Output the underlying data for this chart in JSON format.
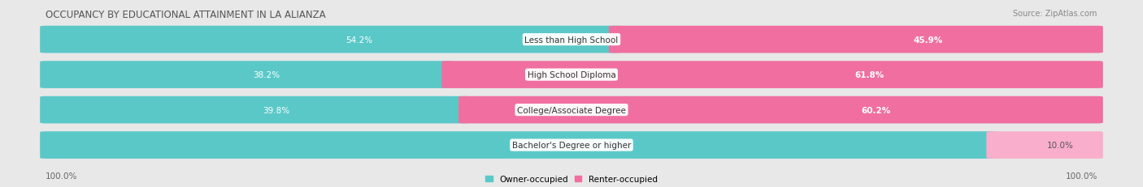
{
  "title": "OCCUPANCY BY EDUCATIONAL ATTAINMENT IN LA ALIANZA",
  "source": "Source: ZipAtlas.com",
  "categories": [
    "Less than High School",
    "High School Diploma",
    "College/Associate Degree",
    "Bachelor's Degree or higher"
  ],
  "owner_values": [
    54.2,
    38.2,
    39.8,
    90.0
  ],
  "renter_values": [
    45.9,
    61.8,
    60.2,
    10.0
  ],
  "owner_color": "#5BC8C8",
  "renter_color": "#F06FA0",
  "renter_color_light": "#F9AECB",
  "bg_color": "#e8e8e8",
  "bar_bg_color": "#d8d8d8",
  "row_bg_color": "#e0e0e0",
  "title_fontsize": 8.5,
  "label_fontsize": 7.5,
  "value_fontsize": 7.5,
  "tick_fontsize": 7.5,
  "legend_fontsize": 7.5,
  "source_fontsize": 7.0
}
